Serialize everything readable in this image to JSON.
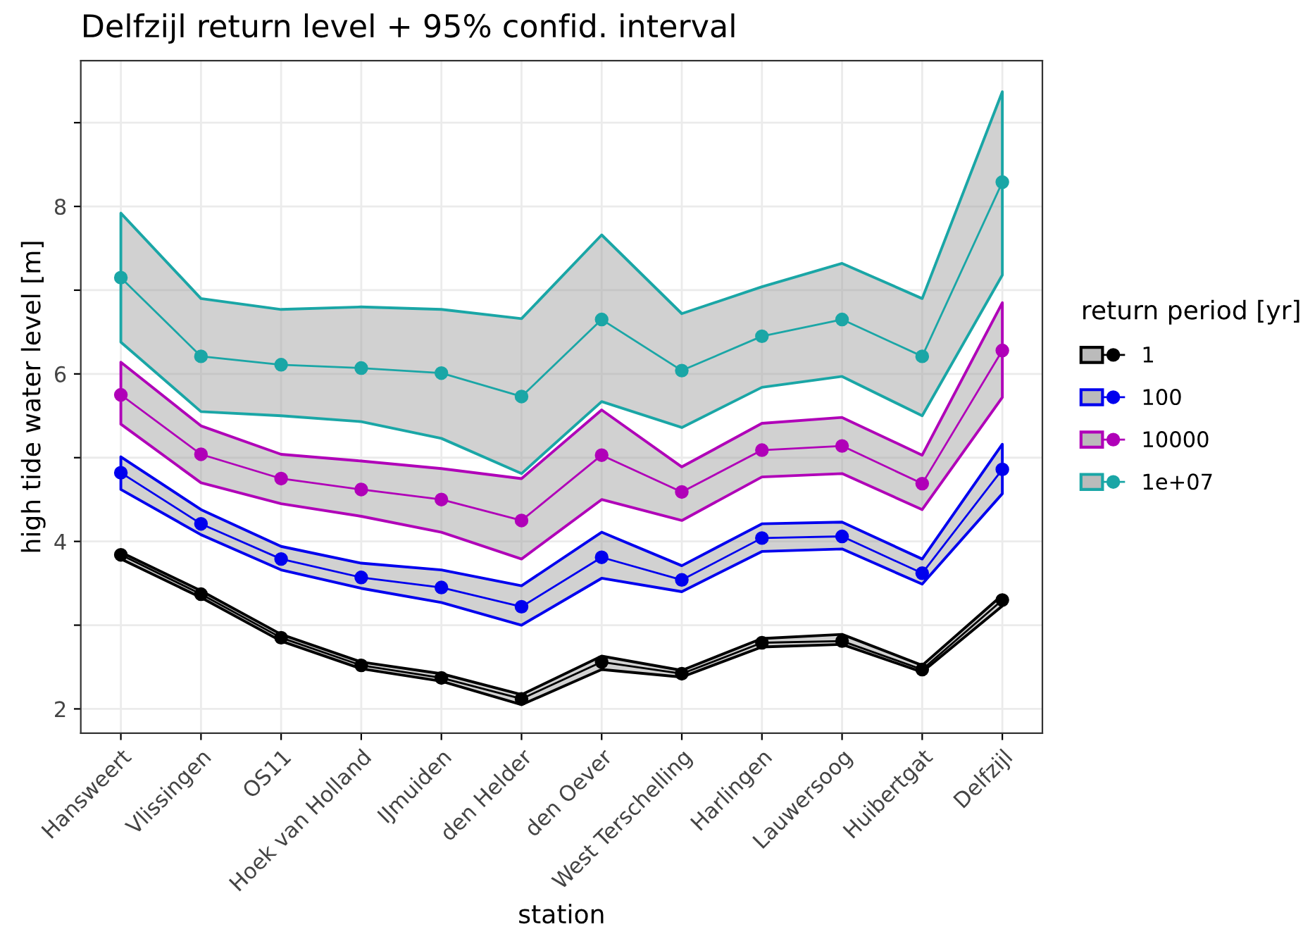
{
  "chart_data": {
    "type": "line",
    "title": "Delfzijl return level + 95% confid. interval",
    "xlabel": "station",
    "ylabel": "high tide water level [m]",
    "legend_title": "return period [yr]",
    "categories": [
      "Hansweert",
      "Vlissingen",
      "OS11",
      "Hoek van Holland",
      "IJmuiden",
      "den Helder",
      "den Oever",
      "West Terschelling",
      "Harlingen",
      "Lauwersoog",
      "Huibertgat",
      "Delfzijl"
    ],
    "series": [
      {
        "name": "1",
        "color": "#000000",
        "values": [
          3.84,
          3.37,
          2.85,
          2.52,
          2.37,
          2.12,
          2.56,
          2.42,
          2.79,
          2.81,
          2.47,
          3.3
        ],
        "lower": [
          3.79,
          3.33,
          2.81,
          2.48,
          2.33,
          2.05,
          2.47,
          2.38,
          2.74,
          2.77,
          2.44,
          3.23
        ],
        "upper": [
          3.87,
          3.41,
          2.89,
          2.56,
          2.42,
          2.17,
          2.63,
          2.46,
          2.84,
          2.89,
          2.52,
          3.36
        ]
      },
      {
        "name": "100",
        "color": "#0000ee",
        "values": [
          4.82,
          4.21,
          3.79,
          3.57,
          3.45,
          3.22,
          3.81,
          3.54,
          4.04,
          4.06,
          3.62,
          4.86
        ],
        "lower": [
          4.62,
          4.08,
          3.66,
          3.44,
          3.27,
          3.0,
          3.56,
          3.4,
          3.88,
          3.91,
          3.49,
          4.57
        ],
        "upper": [
          5.01,
          4.38,
          3.94,
          3.74,
          3.66,
          3.47,
          4.11,
          3.71,
          4.21,
          4.23,
          3.79,
          5.16
        ]
      },
      {
        "name": "10000",
        "color": "#b000b8",
        "values": [
          5.75,
          5.04,
          4.75,
          4.62,
          4.5,
          4.25,
          5.03,
          4.59,
          5.09,
          5.14,
          4.69,
          6.28
        ],
        "lower": [
          5.4,
          4.7,
          4.45,
          4.3,
          4.11,
          3.79,
          4.5,
          4.25,
          4.77,
          4.81,
          4.38,
          5.72
        ],
        "upper": [
          6.14,
          5.38,
          5.04,
          4.96,
          4.87,
          4.75,
          5.57,
          4.89,
          5.41,
          5.48,
          5.03,
          6.85
        ]
      },
      {
        "name": "1e+07",
        "color": "#1aa6a6",
        "values": [
          7.15,
          6.21,
          6.11,
          6.07,
          6.01,
          5.73,
          6.65,
          6.04,
          6.45,
          6.65,
          6.21,
          8.29
        ],
        "lower": [
          6.38,
          5.55,
          5.5,
          5.43,
          5.23,
          4.81,
          5.67,
          5.36,
          5.84,
          5.97,
          5.5,
          7.18
        ],
        "upper": [
          7.92,
          6.9,
          6.77,
          6.8,
          6.77,
          6.66,
          7.66,
          6.72,
          7.04,
          7.32,
          6.9,
          9.37
        ]
      }
    ],
    "ylim": [
      1.71,
      9.74
    ],
    "yticks": [
      2,
      {
        "value": 3,
        "label": null
      },
      4,
      {
        "value": 5,
        "label": null
      },
      6,
      {
        "value": 7,
        "label": null
      },
      8,
      {
        "value": 9,
        "label": null
      }
    ],
    "grid": true,
    "legend": "right",
    "marker": "circle",
    "line_style": "solid"
  }
}
